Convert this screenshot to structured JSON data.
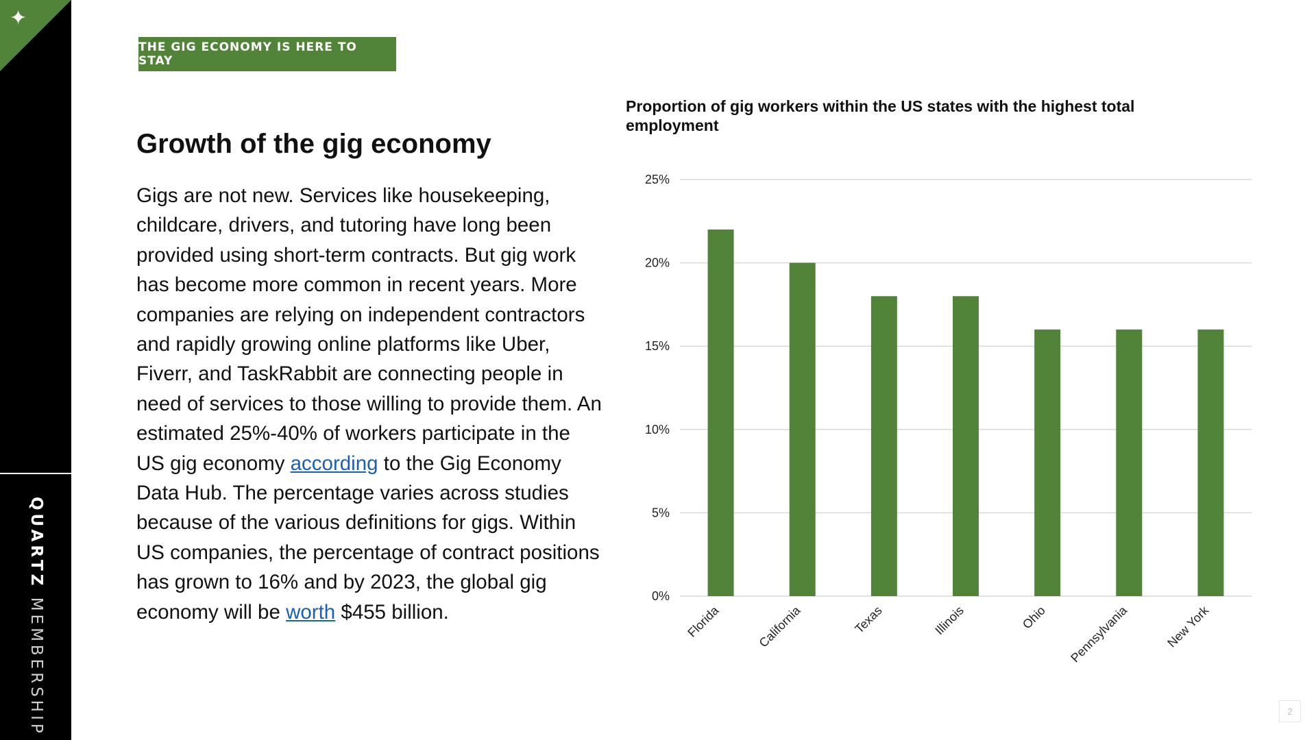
{
  "rail": {
    "brand_bold": "QUARTZ",
    "brand_light": "MEMBERSHIP",
    "star_icon": "four-point-star-icon",
    "accent_color": "#518438"
  },
  "tag": {
    "label": "THE GIG ECONOMY IS HERE TO STAY"
  },
  "article": {
    "heading": "Growth of the gig economy",
    "p_before_link1": "Gigs are not new. Services like housekeeping, childcare, drivers, and tutoring have long been provided using short-term contracts. But gig work has become more common in recent years. More companies are relying on independent contractors and rapidly growing online platforms like Uber, Fiverr, and TaskRabbit are connecting people in need of services to those willing to provide them. An estimated 25%-40% of workers participate in the US gig economy ",
    "link1": "according",
    "p_between_links": " to the Gig Economy Data Hub. The percentage varies across studies because of the various definitions for gigs. Within US companies, the percentage of contract positions has grown to 16% and by 2023, the global gig economy will be ",
    "link2": "worth",
    "p_after_link2": " $455 billion.",
    "link_color": "#1a5fb4"
  },
  "chart_data": {
    "type": "bar",
    "title": "Proportion of gig workers within the US states with the highest total employment",
    "categories": [
      "Florida",
      "California",
      "Texas",
      "Illinois",
      "Ohio",
      "Pennsylvania",
      "New York"
    ],
    "values": [
      22,
      20,
      18,
      18,
      16,
      16,
      16
    ],
    "unit": "%",
    "ylim": [
      0,
      25
    ],
    "yticks": [
      "0%",
      "5%",
      "10%",
      "15%",
      "20%",
      "25%"
    ],
    "xlabel": "",
    "ylabel": "",
    "grid": true,
    "legend": false,
    "bar_color": "#518438"
  },
  "page_number": "2"
}
